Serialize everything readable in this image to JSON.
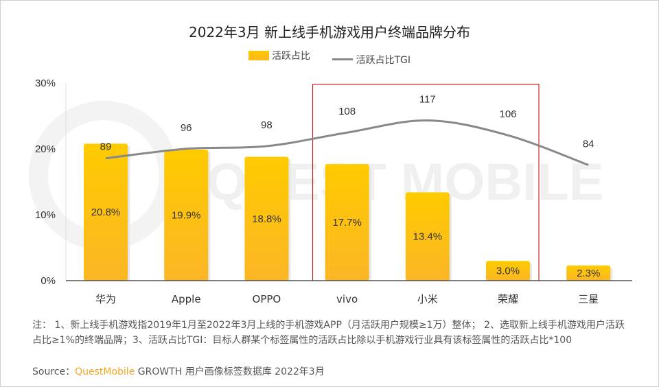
{
  "chart_data": {
    "type": "bar",
    "title": "2022年3月 新上线手机游戏用户终端品牌分布",
    "categories": [
      "华为",
      "Apple",
      "OPPO",
      "vivo",
      "小米",
      "荣耀",
      "三星"
    ],
    "series": [
      {
        "name": "活跃占比",
        "type": "bar",
        "values": [
          20.8,
          19.9,
          18.8,
          17.7,
          13.4,
          3.0,
          2.3
        ],
        "labels": [
          "20.8%",
          "19.9%",
          "18.8%",
          "17.7%",
          "13.4%",
          "3.0%",
          "2.3%"
        ],
        "color": "#ffc107"
      },
      {
        "name": "活跃占比TGI",
        "type": "line",
        "values": [
          89,
          96,
          98,
          108,
          117,
          106,
          84
        ],
        "color": "#888888",
        "axis": "secondary"
      }
    ],
    "yticks": [
      "0%",
      "10%",
      "20%",
      "30%"
    ],
    "ylim": [
      0,
      30
    ],
    "legend": "top",
    "grid": false,
    "highlight": {
      "categories": [
        "vivo",
        "小米",
        "荣耀"
      ],
      "color": "#c00000"
    },
    "watermark": "QUEST MOBILE"
  },
  "notes": "注： 1、新上线手机游戏指2019年1月至2022年3月上线的手机游戏APP（月活跃用户规模≥1万）整体； 2、选取新上线手机游戏用户活跃占比≥1%的终端品牌；3、活跃占比TGI：目标人群某个标签属性的活跃占比除以手机游戏行业具有该标签属性的活跃占比*100",
  "source": {
    "label": "Source：",
    "brand": "QuestMobile",
    "text": " GROWTH 用户画像标签数据库 2022年3月"
  }
}
